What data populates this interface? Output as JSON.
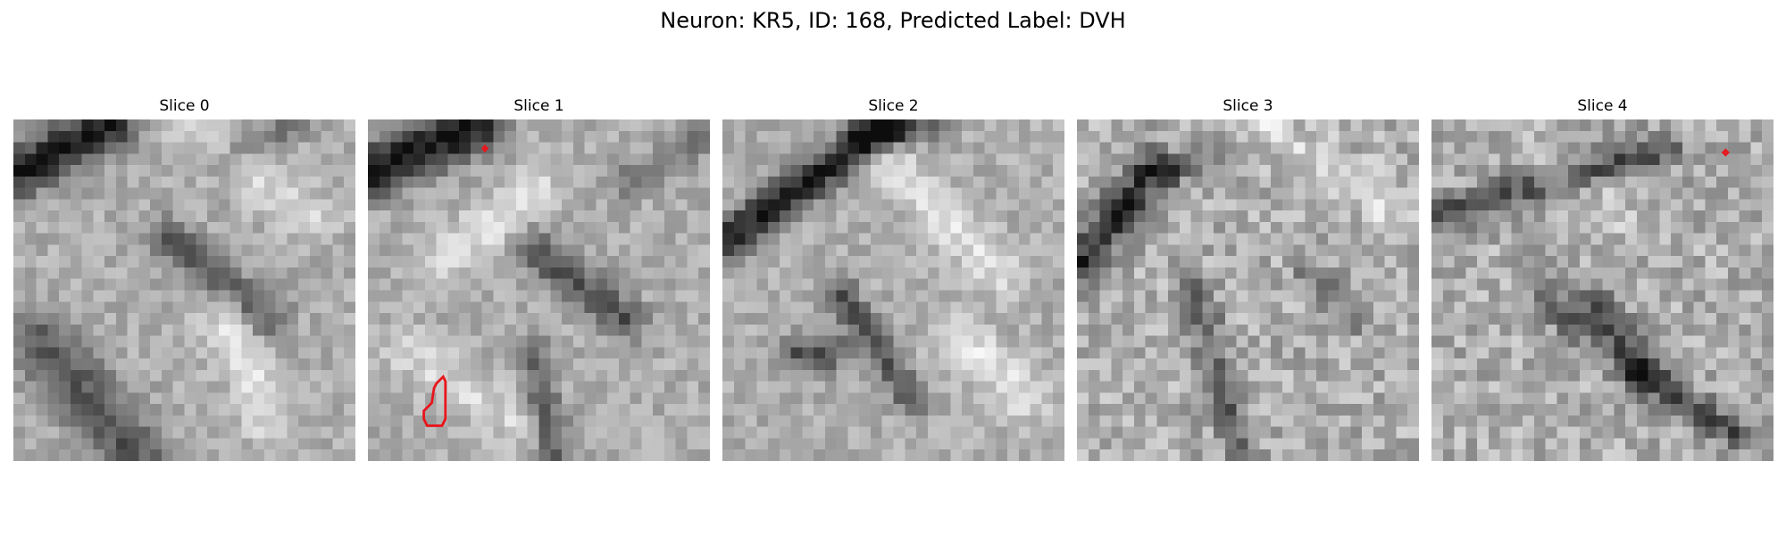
{
  "figure": {
    "title": "Neuron: KR5, ID: 168, Predicted Label: DVH",
    "colormap": "grayscale",
    "overlay_color": "#e8161c",
    "panels": [
      {
        "title": "Slice 0",
        "seed": 11
      },
      {
        "title": "Slice 1",
        "seed": 23
      },
      {
        "title": "Slice 2",
        "seed": 37
      },
      {
        "title": "Slice 3",
        "seed": 41
      },
      {
        "title": "Slice 4",
        "seed": 59
      }
    ]
  }
}
